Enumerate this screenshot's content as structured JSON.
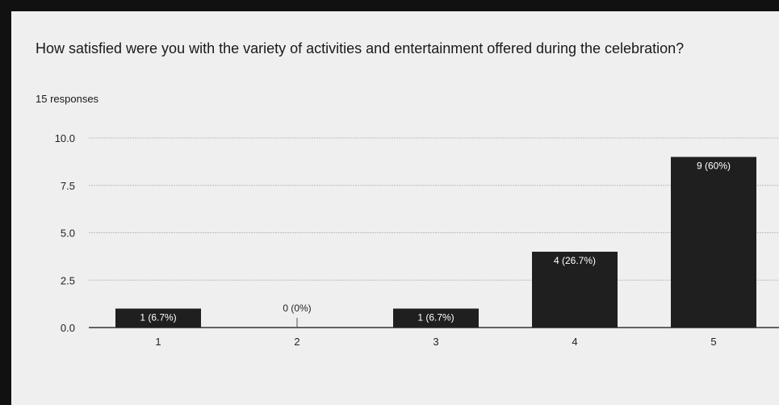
{
  "question": {
    "title": "How satisfied were you with the variety of activities and entertainment offered during the celebration?",
    "responses": "15 responses"
  },
  "colors": {
    "bar": "#1f1f1f",
    "grid": "#bdbdbd",
    "background": "#efefef"
  },
  "chart_data": {
    "type": "bar",
    "title": "",
    "xlabel": "",
    "ylabel": "",
    "categories": [
      "1",
      "2",
      "3",
      "4",
      "5"
    ],
    "values": [
      1,
      0,
      1,
      4,
      9
    ],
    "data_labels": [
      "1 (6.7%)",
      "0 (0%)",
      "1 (6.7%)",
      "4 (26.7%)",
      "9 (60%)"
    ],
    "yticks": [
      "0.0",
      "2.5",
      "5.0",
      "7.5",
      "10.0"
    ],
    "ylim": [
      0,
      10
    ],
    "grid": true,
    "legend": "none"
  }
}
